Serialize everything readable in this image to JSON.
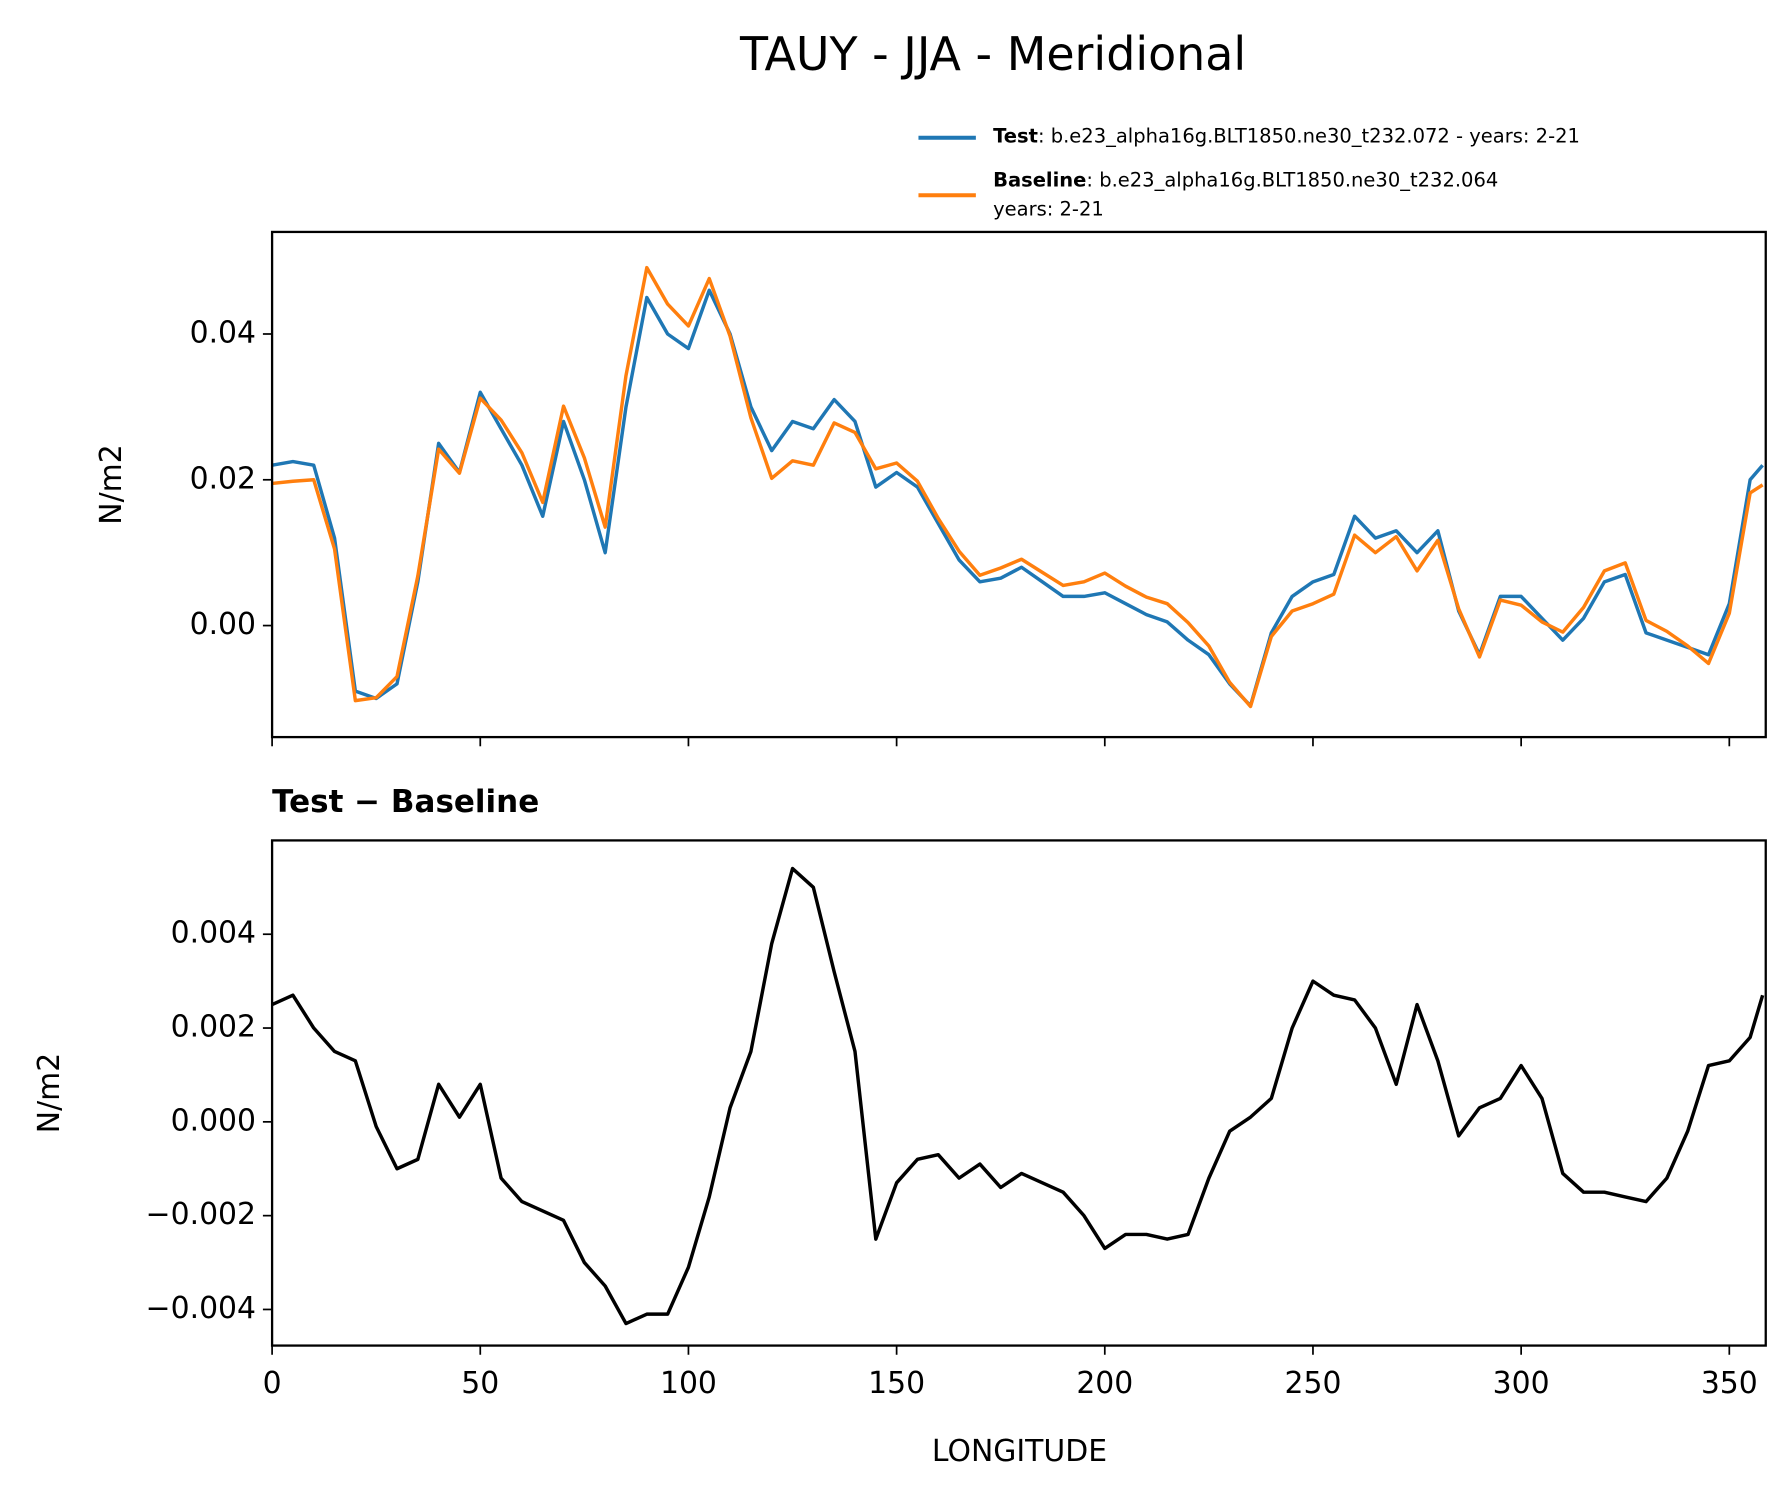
{
  "chart_data": [
    {
      "type": "line",
      "title": "TAUY - JJA - Meridional",
      "ylabel": "N/m2",
      "x": [
        0,
        5,
        10,
        15,
        20,
        25,
        30,
        35,
        40,
        45,
        50,
        55,
        60,
        65,
        70,
        75,
        80,
        85,
        90,
        95,
        100,
        105,
        110,
        115,
        120,
        125,
        130,
        135,
        140,
        145,
        150,
        155,
        160,
        165,
        170,
        175,
        180,
        185,
        190,
        195,
        200,
        205,
        210,
        215,
        220,
        225,
        230,
        235,
        240,
        245,
        250,
        255,
        260,
        265,
        270,
        275,
        280,
        285,
        290,
        295,
        300,
        305,
        310,
        315,
        320,
        325,
        330,
        335,
        340,
        345,
        350,
        355,
        358
      ],
      "series": [
        {
          "name": "Test",
          "label_lines": [
            ": b.e23_alpha16g.BLT1850.ne30_t232.072 - years: 2-21"
          ],
          "color": "#1f77b4",
          "values": [
            0.022,
            0.0225,
            0.022,
            0.012,
            -0.009,
            -0.01,
            -0.008,
            0.006,
            0.025,
            0.021,
            0.032,
            0.027,
            0.022,
            0.015,
            0.028,
            0.02,
            0.01,
            0.03,
            0.045,
            0.04,
            0.038,
            0.046,
            0.04,
            0.03,
            0.024,
            0.028,
            0.027,
            0.031,
            0.028,
            0.019,
            0.021,
            0.019,
            0.014,
            0.009,
            0.006,
            0.0065,
            0.008,
            0.006,
            0.004,
            0.004,
            0.0045,
            0.003,
            0.0015,
            0.0005,
            -0.002,
            -0.004,
            -0.008,
            -0.011,
            -0.001,
            0.004,
            0.006,
            0.007,
            0.015,
            0.012,
            0.013,
            0.01,
            0.013,
            0.002,
            -0.004,
            0.004,
            0.004,
            0.001,
            -0.002,
            0.001,
            0.006,
            0.007,
            -0.001,
            -0.002,
            -0.003,
            -0.004,
            0.003,
            0.02,
            0.022
          ]
        },
        {
          "name": "Baseline",
          "label_lines": [
            ": b.e23_alpha16g.BLT1850.ne30_t232.064",
            "years: 2-21"
          ],
          "color": "#ff7f0e",
          "values": [
            0.0195,
            0.0198,
            0.02,
            0.0105,
            -0.0103,
            -0.0099,
            -0.007,
            0.0068,
            0.0242,
            0.0209,
            0.0312,
            0.0282,
            0.0237,
            0.0169,
            0.0301,
            0.023,
            0.0135,
            0.0343,
            0.0491,
            0.0441,
            0.0411,
            0.0476,
            0.0397,
            0.0285,
            0.0202,
            0.0226,
            0.022,
            0.0278,
            0.0265,
            0.0215,
            0.0223,
            0.0198,
            0.0147,
            0.0102,
            0.0069,
            0.0079,
            0.0091,
            0.0073,
            0.0055,
            0.006,
            0.0072,
            0.0054,
            0.0039,
            0.003,
            0.0004,
            -0.0028,
            -0.0078,
            -0.0111,
            -0.0015,
            0.002,
            0.003,
            0.0043,
            0.0124,
            0.01,
            0.0122,
            0.0075,
            0.0117,
            0.0023,
            -0.0043,
            0.0035,
            0.0028,
            0.0005,
            -0.0009,
            0.0025,
            0.0075,
            0.0086,
            0.0007,
            -0.0008,
            -0.0028,
            -0.0052,
            0.0017,
            0.0182,
            0.0193
          ]
        }
      ],
      "xlim": [
        0,
        358.75
      ],
      "ylim": [
        -0.0153,
        0.054
      ],
      "xticks": [
        0,
        50,
        100,
        150,
        200,
        250,
        300,
        350
      ],
      "yticks": [
        0.04,
        0.02,
        {
          "value": 0,
          "label": "0.00"
        }
      ]
    },
    {
      "type": "line",
      "title": "Test − Baseline",
      "ylabel": "N/m2",
      "xlabel": "LONGITUDE",
      "x": [
        0,
        5,
        10,
        15,
        20,
        25,
        30,
        35,
        40,
        45,
        50,
        55,
        60,
        65,
        70,
        75,
        80,
        85,
        90,
        95,
        100,
        105,
        110,
        115,
        120,
        125,
        130,
        135,
        140,
        145,
        150,
        155,
        160,
        165,
        170,
        175,
        180,
        185,
        190,
        195,
        200,
        205,
        210,
        215,
        220,
        225,
        230,
        235,
        240,
        245,
        250,
        255,
        260,
        265,
        270,
        275,
        280,
        285,
        290,
        295,
        300,
        305,
        310,
        315,
        320,
        325,
        330,
        335,
        340,
        345,
        350,
        355,
        358
      ],
      "series": [
        {
          "color": "#000000",
          "values": [
            0.0025,
            0.0027,
            0.002,
            0.0015,
            0.0013,
            -0.0001,
            -0.001,
            -0.0008,
            0.0008,
            0.0001,
            0.0008,
            -0.0012,
            -0.0017,
            -0.0019,
            -0.0021,
            -0.003,
            -0.0035,
            -0.0043,
            -0.0041,
            -0.0041,
            -0.0031,
            -0.0016,
            0.0003,
            0.0015,
            0.0038,
            0.0054,
            0.005,
            0.0032,
            0.0015,
            -0.0025,
            -0.0013,
            -0.0008,
            -0.0007,
            -0.0012,
            -0.0009,
            -0.0014,
            -0.0011,
            -0.0013,
            -0.0015,
            -0.002,
            -0.0027,
            -0.0024,
            -0.0024,
            -0.0025,
            -0.0024,
            -0.0012,
            -0.0002,
            0.0001,
            0.0005,
            0.002,
            0.003,
            0.0027,
            0.0026,
            0.002,
            0.0008,
            0.0025,
            0.0013,
            -0.0003,
            0.0003,
            0.0005,
            0.0012,
            0.0005,
            -0.0011,
            -0.0015,
            -0.0015,
            -0.0016,
            -0.0017,
            -0.0012,
            -0.0002,
            0.0012,
            0.0013,
            0.0018,
            0.0027
          ]
        }
      ],
      "xlim": [
        0,
        358.75
      ],
      "ylim": [
        -0.00477,
        0.006
      ],
      "xticks": [
        0,
        50,
        100,
        150,
        200,
        250,
        300,
        350
      ],
      "yticks": [
        0.004,
        0.002,
        {
          "value": 0,
          "label": "0.000"
        },
        {
          "value": -0.002,
          "label": "−0.002"
        },
        {
          "value": -0.004,
          "label": "−0.004"
        }
      ]
    }
  ]
}
